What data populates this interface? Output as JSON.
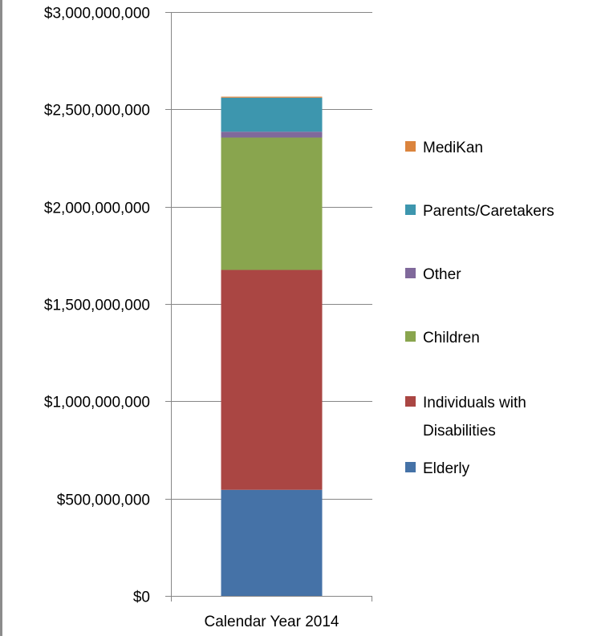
{
  "chart_data": {
    "type": "bar",
    "stacked": true,
    "categories": [
      "Calendar Year 2014"
    ],
    "series": [
      {
        "name": "Elderly",
        "values": [
          545000000
        ],
        "color": "#4572A7"
      },
      {
        "name": "Individuals with Disabilities",
        "values": [
          1130000000
        ],
        "color": "#AA4643"
      },
      {
        "name": "Children",
        "values": [
          680000000
        ],
        "color": "#89A54E"
      },
      {
        "name": "Other",
        "values": [
          30000000
        ],
        "color": "#80699B"
      },
      {
        "name": "Parents/Caretakers",
        "values": [
          175000000
        ],
        "color": "#3D96AE"
      },
      {
        "name": "MediKan",
        "values": [
          5000000
        ],
        "color": "#DB843D"
      }
    ],
    "y_ticks": [
      "$0",
      "$500,000,000",
      "$1,000,000,000",
      "$1,500,000,000",
      "$2,000,000,000",
      "$2,500,000,000",
      "$3,000,000,000"
    ],
    "ylim": [
      0,
      3000000000
    ],
    "grid": true,
    "legend_position": "right",
    "legend_order": [
      "MediKan",
      "Parents/Caretakers",
      "Other",
      "Children",
      "Individuals with Disabilities",
      "Elderly"
    ],
    "legend_labels": {
      "MediKan": [
        "MediKan"
      ],
      "Parents/Caretakers": [
        "Parents/Caretakers"
      ],
      "Other": [
        "Other"
      ],
      "Children": [
        "Children"
      ],
      "Individuals with Disabilities": [
        "Individuals with",
        "Disabilities"
      ],
      "Elderly": [
        "Elderly"
      ]
    },
    "gridline_color": "#868686"
  }
}
